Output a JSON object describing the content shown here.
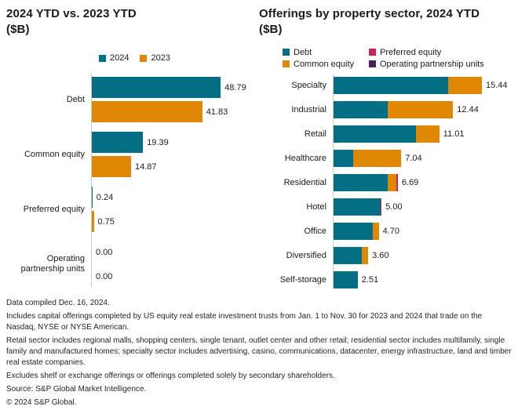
{
  "colors": {
    "teal": "#046e84",
    "orange": "#e08705",
    "pink": "#c9235c",
    "purple": "#462260",
    "axis": "#c9c9c9",
    "text": "#1a1a1a"
  },
  "chart_data": [
    {
      "type": "bar",
      "orientation": "horizontal",
      "stacked": false,
      "title": "2024 YTD vs. 2023 YTD",
      "subtitle": "($B)",
      "categories": [
        "Debt",
        "Common equity",
        "Preferred equity",
        "Operating partnership units"
      ],
      "series": [
        {
          "name": "2024",
          "color_key": "teal",
          "values": [
            48.79,
            19.39,
            0.24,
            0.0
          ]
        },
        {
          "name": "2023",
          "color_key": "orange",
          "values": [
            41.83,
            14.87,
            0.75,
            0.0
          ]
        }
      ],
      "value_labels": [
        [
          "48.79",
          "41.83"
        ],
        [
          "19.39",
          "14.87"
        ],
        [
          "0.24",
          "0.75"
        ],
        [
          "0.00",
          "0.00"
        ]
      ],
      "xlim": [
        0,
        55
      ],
      "grid": false,
      "legend_position": "top"
    },
    {
      "type": "bar",
      "orientation": "horizontal",
      "stacked": true,
      "title": "Offerings by property sector, 2024 YTD",
      "subtitle": "($B)",
      "categories": [
        "Specialty",
        "Industrial",
        "Retail",
        "Healthcare",
        "Residential",
        "Hotel",
        "Office",
        "Diversified",
        "Self-storage"
      ],
      "series": [
        {
          "name": "Debt",
          "color_key": "teal",
          "values": [
            11.9,
            5.6,
            8.6,
            2.05,
            5.6,
            4.9,
            4.05,
            2.95,
            2.51
          ]
        },
        {
          "name": "Common equity",
          "color_key": "orange",
          "values": [
            3.54,
            6.84,
            2.41,
            4.99,
            0.9,
            0.0,
            0.65,
            0.65,
            0.0
          ]
        },
        {
          "name": "Preferred equity",
          "color_key": "pink",
          "values": [
            0.0,
            0.0,
            0.0,
            0.0,
            0.19,
            0.1,
            0.0,
            0.0,
            0.0
          ]
        },
        {
          "name": "Operating partnership units",
          "color_key": "purple",
          "values": [
            0.0,
            0.0,
            0.0,
            0.0,
            0.0,
            0.0,
            0.0,
            0.0,
            0.0
          ]
        }
      ],
      "totals": [
        15.44,
        12.44,
        11.01,
        7.04,
        6.69,
        5.0,
        4.7,
        3.6,
        2.51
      ],
      "total_labels": [
        "15.44",
        "12.44",
        "11.01",
        "7.04",
        "6.69",
        "5.00",
        "4.70",
        "3.60",
        "2.51"
      ],
      "xlim": [
        0,
        16.5
      ],
      "grid": false,
      "legend_position": "top"
    }
  ],
  "footer": {
    "lines": [
      "Data compiled Dec. 16, 2024.",
      "Includes capital offerings completed by US equity real estate investment trusts from Jan. 1 to Nov. 30 for 2023 and 2024 that trade on the Nasdaq, NYSE or NYSE American.",
      "Retail sector includes regional malls, shopping centers, single tenant, outlet center and other retail; residential sector includes multifamily, single family and manufactured homes; specialty sector includes advertising, casino, communications, datacenter, energy infrastructure, land and timber real estate companies.",
      "Excludes shelf or exchange offerings or offerings completed solely by secondary shareholders.",
      "Source: S&P Global Market Intelligence.",
      "© 2024 S&P Global."
    ]
  }
}
